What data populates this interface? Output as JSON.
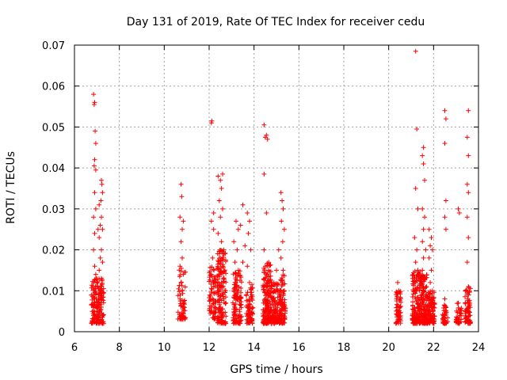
{
  "chart_data": {
    "type": "scatter",
    "title": "Day 131 of 2019, Rate Of TEC Index for receiver cedu",
    "xlabel": "GPS time / hours",
    "ylabel": "ROTI / TECUs",
    "xlim": [
      6,
      24
    ],
    "ylim": [
      0,
      0.07
    ],
    "xticks": [
      "6",
      "8",
      "10",
      "12",
      "14",
      "16",
      "18",
      "20",
      "22",
      "24"
    ],
    "yticks": [
      "0",
      "0.01",
      "0.02",
      "0.03",
      "0.04",
      "0.05",
      "0.06",
      "0.07"
    ],
    "grid": true,
    "marker": "+",
    "series": [
      {
        "name": "ROTI",
        "color": "#ff0000",
        "points": [
          [
            6.85,
            0.058
          ],
          [
            6.88,
            0.0555
          ],
          [
            6.9,
            0.056
          ],
          [
            6.92,
            0.049
          ],
          [
            6.95,
            0.046
          ],
          [
            6.9,
            0.042
          ],
          [
            6.88,
            0.0405
          ],
          [
            6.95,
            0.0395
          ],
          [
            6.9,
            0.034
          ],
          [
            6.85,
            0.028
          ],
          [
            6.95,
            0.03
          ],
          [
            6.9,
            0.024
          ],
          [
            6.85,
            0.02
          ],
          [
            6.9,
            0.016
          ],
          [
            6.95,
            0.014
          ],
          [
            7.05,
            0.025
          ],
          [
            7.1,
            0.031
          ],
          [
            7.2,
            0.037
          ],
          [
            7.22,
            0.036
          ],
          [
            7.25,
            0.034
          ],
          [
            7.18,
            0.032
          ],
          [
            7.2,
            0.028
          ],
          [
            7.15,
            0.026
          ],
          [
            7.25,
            0.025
          ],
          [
            7.1,
            0.023
          ],
          [
            7.2,
            0.02
          ],
          [
            7.15,
            0.018
          ],
          [
            7.25,
            0.017
          ],
          [
            7.1,
            0.015
          ],
          [
            7.2,
            0.013
          ],
          [
            7.05,
            0.011
          ],
          [
            7.15,
            0.01
          ],
          [
            6.95,
            0.009
          ],
          [
            7.1,
            0.008
          ],
          [
            6.9,
            0.007
          ],
          [
            7.2,
            0.006
          ],
          [
            7.0,
            0.005
          ],
          [
            6.85,
            0.004
          ],
          [
            7.15,
            0.003
          ],
          [
            7.25,
            0.002
          ],
          [
            10.75,
            0.036
          ],
          [
            10.78,
            0.033
          ],
          [
            10.7,
            0.028
          ],
          [
            10.85,
            0.027
          ],
          [
            10.8,
            0.025
          ],
          [
            10.75,
            0.022
          ],
          [
            10.8,
            0.018
          ],
          [
            10.7,
            0.016
          ],
          [
            10.85,
            0.014
          ],
          [
            10.75,
            0.012
          ],
          [
            10.8,
            0.01
          ],
          [
            10.7,
            0.008
          ],
          [
            10.85,
            0.006
          ],
          [
            10.75,
            0.004
          ],
          [
            12.12,
            0.0515
          ],
          [
            12.1,
            0.051
          ],
          [
            12.2,
            0.029
          ],
          [
            12.1,
            0.027
          ],
          [
            12.2,
            0.025
          ],
          [
            12.15,
            0.018
          ],
          [
            12.1,
            0.014
          ],
          [
            12.2,
            0.011
          ],
          [
            12.15,
            0.008
          ],
          [
            12.1,
            0.006
          ],
          [
            12.4,
            0.038
          ],
          [
            12.5,
            0.037
          ],
          [
            12.6,
            0.0385
          ],
          [
            12.55,
            0.035
          ],
          [
            12.45,
            0.032
          ],
          [
            12.6,
            0.03
          ],
          [
            12.5,
            0.028
          ],
          [
            12.4,
            0.024
          ],
          [
            12.55,
            0.022
          ],
          [
            12.65,
            0.02
          ],
          [
            12.5,
            0.018
          ],
          [
            12.6,
            0.016
          ],
          [
            12.45,
            0.014
          ],
          [
            12.55,
            0.012
          ],
          [
            12.4,
            0.01
          ],
          [
            12.65,
            0.008
          ],
          [
            12.5,
            0.006
          ],
          [
            12.6,
            0.004
          ],
          [
            12.45,
            0.003
          ],
          [
            13.2,
            0.027
          ],
          [
            13.3,
            0.025
          ],
          [
            13.1,
            0.022
          ],
          [
            13.25,
            0.02
          ],
          [
            13.15,
            0.017
          ],
          [
            13.3,
            0.015
          ],
          [
            13.2,
            0.012
          ],
          [
            13.1,
            0.01
          ],
          [
            13.25,
            0.008
          ],
          [
            13.15,
            0.006
          ],
          [
            13.3,
            0.004
          ],
          [
            13.5,
            0.031
          ],
          [
            13.4,
            0.026
          ],
          [
            13.6,
            0.021
          ],
          [
            13.5,
            0.017
          ],
          [
            13.7,
            0.029
          ],
          [
            13.8,
            0.027
          ],
          [
            13.75,
            0.024
          ],
          [
            13.85,
            0.02
          ],
          [
            13.7,
            0.016
          ],
          [
            13.8,
            0.012
          ],
          [
            13.9,
            0.009
          ],
          [
            13.75,
            0.006
          ],
          [
            13.85,
            0.004
          ],
          [
            14.45,
            0.0505
          ],
          [
            14.5,
            0.0475
          ],
          [
            14.6,
            0.047
          ],
          [
            14.55,
            0.048
          ],
          [
            14.45,
            0.0385
          ],
          [
            14.55,
            0.029
          ],
          [
            14.45,
            0.02
          ],
          [
            14.5,
            0.016
          ],
          [
            14.6,
            0.014
          ],
          [
            14.55,
            0.012
          ],
          [
            14.65,
            0.01
          ],
          [
            14.5,
            0.008
          ],
          [
            14.6,
            0.006
          ],
          [
            14.45,
            0.004
          ],
          [
            14.55,
            0.003
          ],
          [
            14.8,
            0.012
          ],
          [
            14.9,
            0.01
          ],
          [
            15.0,
            0.015
          ],
          [
            15.1,
            0.02
          ],
          [
            14.95,
            0.006
          ],
          [
            15.05,
            0.004
          ],
          [
            14.85,
            0.008
          ],
          [
            15.2,
            0.034
          ],
          [
            15.25,
            0.032
          ],
          [
            15.3,
            0.03
          ],
          [
            15.22,
            0.027
          ],
          [
            15.35,
            0.025
          ],
          [
            15.28,
            0.022
          ],
          [
            15.2,
            0.018
          ],
          [
            15.3,
            0.015
          ],
          [
            15.25,
            0.012
          ],
          [
            15.35,
            0.01
          ],
          [
            15.2,
            0.008
          ],
          [
            15.3,
            0.006
          ],
          [
            15.25,
            0.004
          ],
          [
            15.15,
            0.003
          ],
          [
            20.4,
            0.012
          ],
          [
            20.45,
            0.01
          ],
          [
            20.35,
            0.008
          ],
          [
            20.5,
            0.006
          ],
          [
            20.4,
            0.004
          ],
          [
            20.45,
            0.003
          ],
          [
            21.2,
            0.0685
          ],
          [
            21.25,
            0.0495
          ],
          [
            21.2,
            0.035
          ],
          [
            21.3,
            0.03
          ],
          [
            21.15,
            0.023
          ],
          [
            21.25,
            0.02
          ],
          [
            21.2,
            0.017
          ],
          [
            21.3,
            0.015
          ],
          [
            21.15,
            0.012
          ],
          [
            21.25,
            0.01
          ],
          [
            21.2,
            0.008
          ],
          [
            21.3,
            0.006
          ],
          [
            21.15,
            0.004
          ],
          [
            21.25,
            0.003
          ],
          [
            21.55,
            0.045
          ],
          [
            21.5,
            0.043
          ],
          [
            21.55,
            0.041
          ],
          [
            21.6,
            0.037
          ],
          [
            21.5,
            0.03
          ],
          [
            21.6,
            0.028
          ],
          [
            21.55,
            0.025
          ],
          [
            21.5,
            0.022
          ],
          [
            21.65,
            0.02
          ],
          [
            21.55,
            0.018
          ],
          [
            21.5,
            0.015
          ],
          [
            21.6,
            0.013
          ],
          [
            21.55,
            0.011
          ],
          [
            21.65,
            0.009
          ],
          [
            21.5,
            0.007
          ],
          [
            21.6,
            0.005
          ],
          [
            21.55,
            0.003
          ],
          [
            21.8,
            0.025
          ],
          [
            21.9,
            0.023
          ],
          [
            21.85,
            0.021
          ],
          [
            21.95,
            0.02
          ],
          [
            21.8,
            0.018
          ],
          [
            21.9,
            0.015
          ],
          [
            21.85,
            0.012
          ],
          [
            21.95,
            0.01
          ],
          [
            21.8,
            0.008
          ],
          [
            21.9,
            0.006
          ],
          [
            21.85,
            0.004
          ],
          [
            22.0,
            0.006
          ],
          [
            22.5,
            0.054
          ],
          [
            22.55,
            0.052
          ],
          [
            22.5,
            0.046
          ],
          [
            22.55,
            0.032
          ],
          [
            22.5,
            0.028
          ],
          [
            22.55,
            0.025
          ],
          [
            22.5,
            0.008
          ],
          [
            22.55,
            0.006
          ],
          [
            22.5,
            0.004
          ],
          [
            23.1,
            0.03
          ],
          [
            23.15,
            0.029
          ],
          [
            23.1,
            0.007
          ],
          [
            23.15,
            0.005
          ],
          [
            23.1,
            0.003
          ],
          [
            23.55,
            0.054
          ],
          [
            23.5,
            0.0475
          ],
          [
            23.55,
            0.043
          ],
          [
            23.5,
            0.036
          ],
          [
            23.55,
            0.034
          ],
          [
            23.5,
            0.028
          ],
          [
            23.55,
            0.023
          ],
          [
            23.5,
            0.017
          ],
          [
            23.55,
            0.011
          ],
          [
            23.5,
            0.009
          ],
          [
            23.6,
            0.007
          ],
          [
            23.5,
            0.005
          ],
          [
            23.55,
            0.003
          ]
        ],
        "dense_bands": [
          {
            "x_range": [
              6.75,
              7.3
            ],
            "y_range": [
              0.002,
              0.013
            ],
            "n": 160
          },
          {
            "x_range": [
              10.6,
              10.95
            ],
            "y_range": [
              0.003,
              0.016
            ],
            "n": 60
          },
          {
            "x_range": [
              12.0,
              12.3
            ],
            "y_range": [
              0.003,
              0.016
            ],
            "n": 70
          },
          {
            "x_range": [
              12.35,
              12.75
            ],
            "y_range": [
              0.002,
              0.02
            ],
            "n": 140
          },
          {
            "x_range": [
              13.05,
              13.45
            ],
            "y_range": [
              0.002,
              0.015
            ],
            "n": 110
          },
          {
            "x_range": [
              13.65,
              13.95
            ],
            "y_range": [
              0.002,
              0.012
            ],
            "n": 70
          },
          {
            "x_range": [
              14.4,
              14.75
            ],
            "y_range": [
              0.002,
              0.017
            ],
            "n": 150
          },
          {
            "x_range": [
              14.75,
              15.15
            ],
            "y_range": [
              0.002,
              0.012
            ],
            "n": 120
          },
          {
            "x_range": [
              15.15,
              15.4
            ],
            "y_range": [
              0.002,
              0.014
            ],
            "n": 80
          },
          {
            "x_range": [
              20.3,
              20.55
            ],
            "y_range": [
              0.002,
              0.01
            ],
            "n": 50
          },
          {
            "x_range": [
              21.05,
              21.4
            ],
            "y_range": [
              0.002,
              0.015
            ],
            "n": 130
          },
          {
            "x_range": [
              21.4,
              21.75
            ],
            "y_range": [
              0.002,
              0.014
            ],
            "n": 130
          },
          {
            "x_range": [
              21.75,
              22.05
            ],
            "y_range": [
              0.002,
              0.01
            ],
            "n": 90
          },
          {
            "x_range": [
              22.4,
              22.65
            ],
            "y_range": [
              0.002,
              0.007
            ],
            "n": 40
          },
          {
            "x_range": [
              23.0,
              23.25
            ],
            "y_range": [
              0.002,
              0.007
            ],
            "n": 40
          },
          {
            "x_range": [
              23.4,
              23.65
            ],
            "y_range": [
              0.002,
              0.011
            ],
            "n": 60
          }
        ]
      }
    ]
  }
}
